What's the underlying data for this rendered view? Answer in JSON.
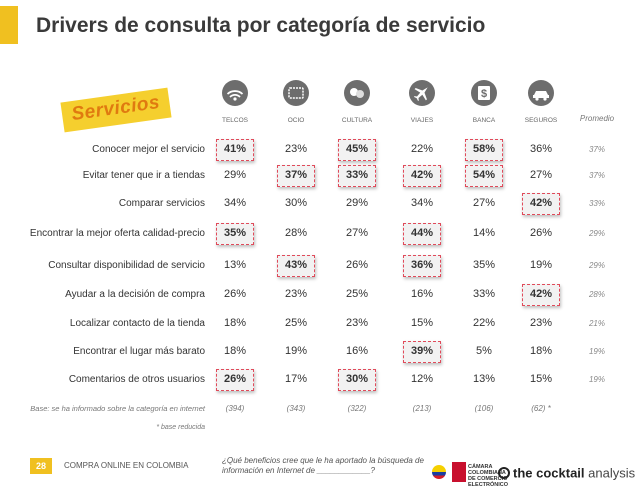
{
  "title": "Drivers de consulta por categoría de servicio",
  "ribbon_label": "Servicios",
  "columns": [
    {
      "label": "TELCOS",
      "icon": "wifi-icon"
    },
    {
      "label": "OCIO",
      "icon": "ticket-icon"
    },
    {
      "label": "CULTURA",
      "icon": "theater-masks-icon"
    },
    {
      "label": "VIAJES",
      "icon": "airplane-icon"
    },
    {
      "label": "BANCA",
      "icon": "dollar-icon"
    },
    {
      "label": "SEGUROS",
      "icon": "car-icon"
    }
  ],
  "average_header": "Promedio",
  "rows": [
    {
      "label": "Conocer mejor el servicio",
      "values": [
        "41%",
        "23%",
        "45%",
        "22%",
        "58%",
        "36%"
      ],
      "highlight": [
        true,
        false,
        true,
        false,
        true,
        false
      ],
      "average": "37%"
    },
    {
      "label": "Evitar tener que ir a tiendas",
      "values": [
        "29%",
        "37%",
        "33%",
        "42%",
        "54%",
        "27%"
      ],
      "highlight": [
        false,
        true,
        true,
        true,
        true,
        false
      ],
      "average": "37%"
    },
    {
      "label": "Comparar servicios",
      "values": [
        "34%",
        "30%",
        "29%",
        "34%",
        "27%",
        "42%"
      ],
      "highlight": [
        false,
        false,
        false,
        false,
        false,
        true
      ],
      "average": "33%"
    },
    {
      "label": "Encontrar la mejor oferta calidad-precio",
      "values": [
        "35%",
        "28%",
        "27%",
        "44%",
        "14%",
        "26%"
      ],
      "highlight": [
        true,
        false,
        false,
        true,
        false,
        false
      ],
      "average": "29%"
    },
    {
      "label": "Consultar disponibilidad de servicio",
      "values": [
        "13%",
        "43%",
        "26%",
        "36%",
        "35%",
        "19%"
      ],
      "highlight": [
        false,
        true,
        false,
        true,
        false,
        false
      ],
      "average": "29%"
    },
    {
      "label": "Ayudar a la decisión de compra",
      "values": [
        "26%",
        "23%",
        "25%",
        "16%",
        "33%",
        "42%"
      ],
      "highlight": [
        false,
        false,
        false,
        false,
        false,
        true
      ],
      "average": "28%"
    },
    {
      "label": "Localizar contacto de la tienda",
      "values": [
        "18%",
        "25%",
        "23%",
        "15%",
        "22%",
        "23%"
      ],
      "highlight": [
        false,
        false,
        false,
        false,
        false,
        false
      ],
      "average": "21%"
    },
    {
      "label": "Encontrar el lugar más barato",
      "values": [
        "18%",
        "19%",
        "16%",
        "39%",
        "5%",
        "18%"
      ],
      "highlight": [
        false,
        false,
        false,
        true,
        false,
        false
      ],
      "average": "19%"
    },
    {
      "label": "Comentarios de otros usuarios",
      "values": [
        "26%",
        "17%",
        "30%",
        "12%",
        "13%",
        "15%"
      ],
      "highlight": [
        true,
        false,
        true,
        false,
        false,
        false
      ],
      "average": "19%"
    }
  ],
  "base_label": "Base: se ha informado sobre la categoría en internet",
  "base_values": [
    "(394)",
    "(343)",
    "(322)",
    "(213)",
    "(106)",
    "(62) *"
  ],
  "reduced_base_note": "* base reducida",
  "footer": {
    "page_number": "28",
    "text": "COMPRA ONLINE EN COLOMBIA",
    "question": "¿Qué beneficios cree que le ha aportado la búsqueda de información en Internet de ____________?",
    "partner_logo_text": "CÁMARA COLOMBIANA DE COMERCIO ELECTRÓNICO",
    "logo_bold": "the cocktail",
    "logo_normal": " analysis"
  },
  "colors": {
    "accent": "#f0c020",
    "highlight_border": "#e04a5a",
    "icon_bg": "#6d6d6d"
  }
}
